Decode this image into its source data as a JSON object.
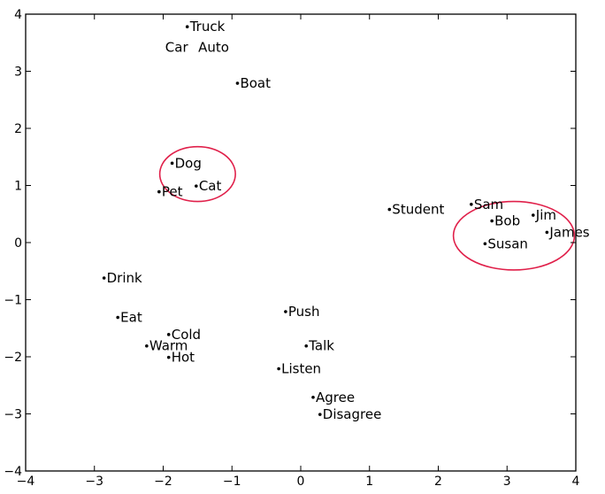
{
  "chart_data": {
    "type": "scatter",
    "xlim": [
      -4,
      4
    ],
    "ylim": [
      -4,
      4
    ],
    "grid": false,
    "xticks": [
      -4,
      -3,
      -2,
      -1,
      0,
      1,
      2,
      3,
      4
    ],
    "yticks": [
      -4,
      -3,
      -2,
      -1,
      0,
      1,
      2,
      3,
      4
    ],
    "xtick_labels": [
      "−4",
      "−3",
      "−2",
      "−1",
      "0",
      "1",
      "2",
      "3",
      "4"
    ],
    "ytick_labels": [
      "−4",
      "−3",
      "−2",
      "−1",
      "0",
      "1",
      "2",
      "3",
      "4"
    ],
    "points": [
      {
        "label": "Truck",
        "x": -1.65,
        "y": 3.78
      },
      {
        "label": "Car",
        "x": -1.65,
        "y": 3.62,
        "nodot": true,
        "label_dx": -12,
        "label_dy": 18
      },
      {
        "label": "Auto",
        "x": -1.55,
        "y": 3.62,
        "nodot": true,
        "label_dx": 22,
        "label_dy": 18
      },
      {
        "label": "Boat",
        "x": -0.92,
        "y": 2.79
      },
      {
        "label": "Dog",
        "x": -1.87,
        "y": 1.39
      },
      {
        "label": "Cat",
        "x": -1.52,
        "y": 0.99
      },
      {
        "label": "Pet",
        "x": -2.06,
        "y": 0.89
      },
      {
        "label": "Student",
        "x": 1.29,
        "y": 0.58
      },
      {
        "label": "Sam",
        "x": 2.48,
        "y": 0.67
      },
      {
        "label": "Bob",
        "x": 2.78,
        "y": 0.38
      },
      {
        "label": "Jim",
        "x": 3.38,
        "y": 0.48
      },
      {
        "label": "James",
        "x": 3.58,
        "y": 0.18
      },
      {
        "label": "Susan",
        "x": 2.68,
        "y": -0.02
      },
      {
        "label": "Drink",
        "x": -2.86,
        "y": -0.62
      },
      {
        "label": "Eat",
        "x": -2.66,
        "y": -1.31
      },
      {
        "label": "Push",
        "x": -0.22,
        "y": -1.21
      },
      {
        "label": "Cold",
        "x": -1.92,
        "y": -1.61
      },
      {
        "label": "Warm",
        "x": -2.24,
        "y": -1.81
      },
      {
        "label": "Hot",
        "x": -1.92,
        "y": -2.01
      },
      {
        "label": "Talk",
        "x": 0.08,
        "y": -1.81
      },
      {
        "label": "Listen",
        "x": -0.32,
        "y": -2.21
      },
      {
        "label": "Agree",
        "x": 0.18,
        "y": -2.71
      },
      {
        "label": "Disagree",
        "x": 0.28,
        "y": -3.01
      }
    ],
    "annotations": [
      {
        "type": "ellipse",
        "cx": -1.5,
        "cy": 1.2,
        "rx": 0.55,
        "ry": 0.48,
        "color": "#e0204a"
      },
      {
        "type": "ellipse",
        "cx": 3.1,
        "cy": 0.12,
        "rx": 0.88,
        "ry": 0.6,
        "color": "#e0204a"
      }
    ]
  }
}
